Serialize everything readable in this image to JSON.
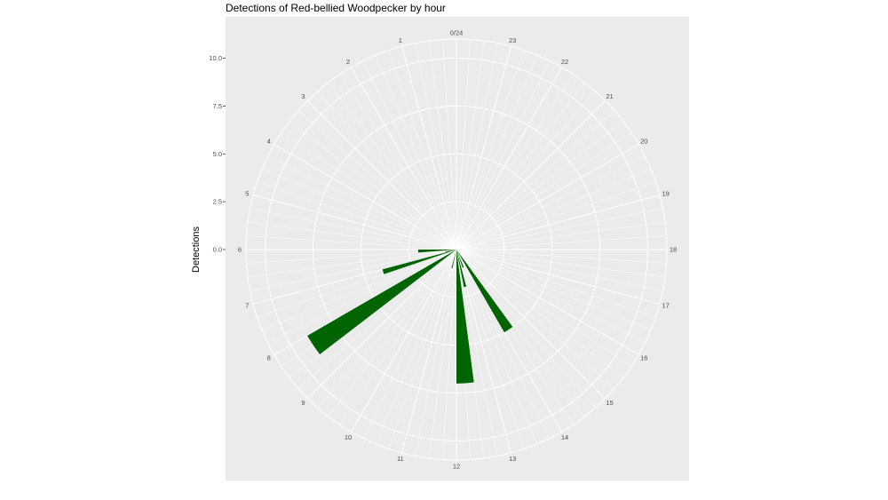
{
  "chart_data": {
    "type": "bar",
    "polar": true,
    "title": "Detections of Red-bellied Woodpecker by hour",
    "xlabel": "",
    "ylabel": "Detections",
    "x_ticks": [
      "0/24",
      "1",
      "2",
      "3",
      "4",
      "5",
      "6",
      "7",
      "8",
      "9",
      "10",
      "11",
      "12",
      "13",
      "14",
      "15",
      "16",
      "17",
      "18",
      "19",
      "20",
      "21",
      "22",
      "23"
    ],
    "y_ticks": [
      "0.0",
      "2.5",
      "5.0",
      "7.5",
      "10.0"
    ],
    "ylim": [
      0,
      11
    ],
    "bar_color": "#006400",
    "panel_color": "#ebebeb",
    "grid_color": "#ffffff",
    "bins": [
      {
        "start": 6.0,
        "end": 6.3,
        "value": 2
      },
      {
        "start": 6.75,
        "end": 7.0,
        "value": 0.6
      },
      {
        "start": 7.0,
        "end": 7.25,
        "value": 4
      },
      {
        "start": 8.0,
        "end": 8.5,
        "value": 9
      },
      {
        "start": 11.0,
        "end": 11.2,
        "value": 1
      },
      {
        "start": 12.0,
        "end": 12.5,
        "value": 7
      },
      {
        "start": 12.75,
        "end": 13.0,
        "value": 2
      },
      {
        "start": 13.25,
        "end": 13.5,
        "value": 1
      },
      {
        "start": 14.0,
        "end": 14.4,
        "value": 5
      }
    ]
  }
}
